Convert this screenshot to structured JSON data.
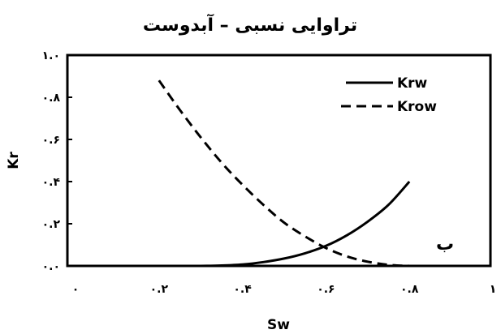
{
  "chart_data": {
    "type": "line",
    "title": "تراوایی نسبی – آبدوست",
    "xlabel": "Sw",
    "ylabel": "Kr",
    "xlim": [
      0,
      1
    ],
    "ylim": [
      0,
      1
    ],
    "x_ticks": [
      0,
      0.2,
      0.4,
      0.6,
      0.8,
      1
    ],
    "x_tick_labels": [
      "۰",
      "۰.۲",
      "۰.۴",
      "۰.۶",
      "۰.۸",
      "۱"
    ],
    "y_ticks": [
      0,
      0.2,
      0.4,
      0.6,
      0.8,
      1
    ],
    "y_tick_labels": [
      "۰.۰",
      "۰.۲",
      "۰.۴",
      "۰.۶",
      "۰.۸",
      "۱.۰"
    ],
    "grid": false,
    "legend_position": "top-right",
    "annotation": "ب",
    "series": [
      {
        "name": "Krw",
        "style": "solid",
        "color": "#000000",
        "x": [
          0.2,
          0.25,
          0.3,
          0.35,
          0.4,
          0.45,
          0.5,
          0.55,
          0.6,
          0.65,
          0.7,
          0.75,
          0.8
        ],
        "y": [
          0.0,
          0.0,
          0.0,
          0.002,
          0.007,
          0.018,
          0.035,
          0.06,
          0.095,
          0.145,
          0.21,
          0.29,
          0.4
        ]
      },
      {
        "name": "Krow",
        "style": "dashed",
        "color": "#000000",
        "x": [
          0.2,
          0.25,
          0.3,
          0.35,
          0.4,
          0.45,
          0.5,
          0.55,
          0.6,
          0.65,
          0.7,
          0.75,
          0.8
        ],
        "y": [
          0.88,
          0.74,
          0.61,
          0.49,
          0.385,
          0.29,
          0.205,
          0.14,
          0.085,
          0.045,
          0.02,
          0.005,
          0.0
        ]
      }
    ]
  }
}
